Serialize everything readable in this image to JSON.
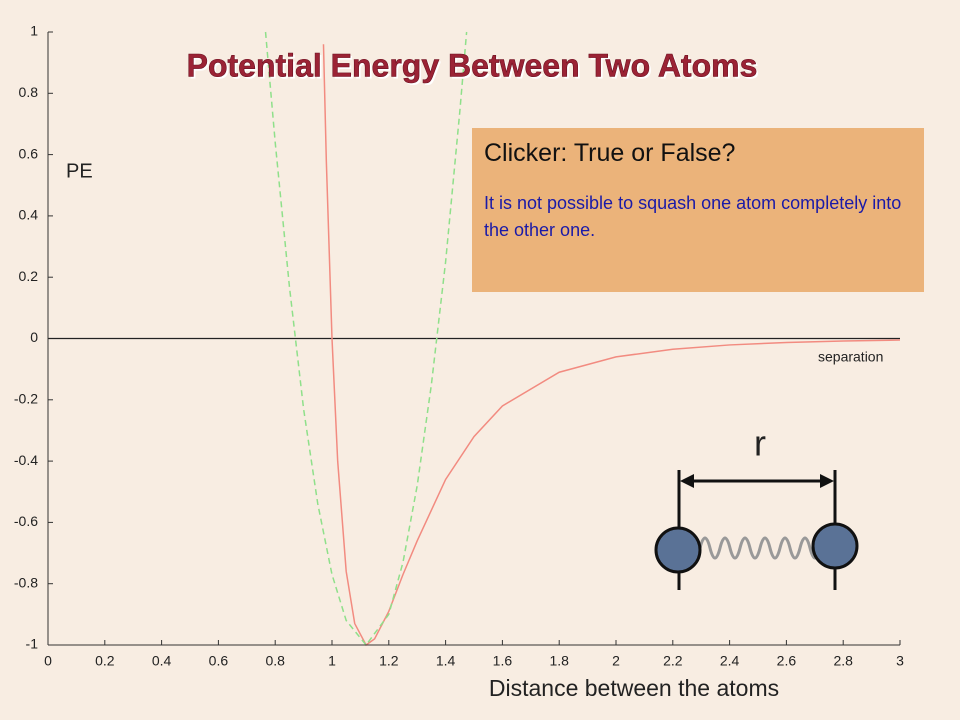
{
  "chart_data": {
    "type": "line",
    "title": "Potential Energy Between Two Atoms",
    "y_label": "PE",
    "x_label": "Distance between the atoms",
    "annotations": [
      "separation",
      "r"
    ],
    "callout": {
      "heading": "Clicker: True or False?",
      "text": "It is not possible to squash one atom completely into the other one."
    },
    "xlim": [
      0,
      3
    ],
    "ylim": [
      -1,
      1
    ],
    "xticks": [
      0,
      0.2,
      0.4,
      0.6,
      0.8,
      1,
      1.2,
      1.4,
      1.6,
      1.8,
      2,
      2.2,
      2.4,
      2.6,
      2.8,
      3
    ],
    "yticks": [
      -1,
      -0.8,
      -0.6,
      -0.4,
      -0.2,
      0,
      0.2,
      0.4,
      0.6,
      0.8,
      1
    ],
    "series": [
      {
        "color": "#f28b80",
        "dashed": false,
        "x": [
          0.97,
          0.98,
          1.0,
          1.02,
          1.05,
          1.08,
          1.12,
          1.15,
          1.2,
          1.25,
          1.3,
          1.4,
          1.5,
          1.6,
          1.8,
          2.0,
          2.2,
          2.4,
          2.6,
          2.8,
          3.0
        ],
        "values": [
          0.96,
          0.58,
          0,
          -0.4,
          -0.76,
          -0.93,
          -1.0,
          -0.98,
          -0.89,
          -0.77,
          -0.66,
          -0.46,
          -0.32,
          -0.22,
          -0.11,
          -0.06,
          -0.035,
          -0.021,
          -0.013,
          -0.008,
          -0.005
        ]
      },
      {
        "color": "#8fe08a",
        "dashed": true,
        "x": [
          0.766,
          0.8,
          0.85,
          0.9,
          0.95,
          1.0,
          1.05,
          1.12,
          1.2,
          1.25,
          1.3,
          1.35,
          1.4,
          1.45,
          1.474
        ],
        "values": [
          1.0,
          0.64,
          0.17,
          -0.23,
          -0.54,
          -0.77,
          -0.92,
          -1.0,
          -0.9,
          -0.73,
          -0.48,
          -0.15,
          0.25,
          0.74,
          1.0
        ]
      }
    ]
  }
}
